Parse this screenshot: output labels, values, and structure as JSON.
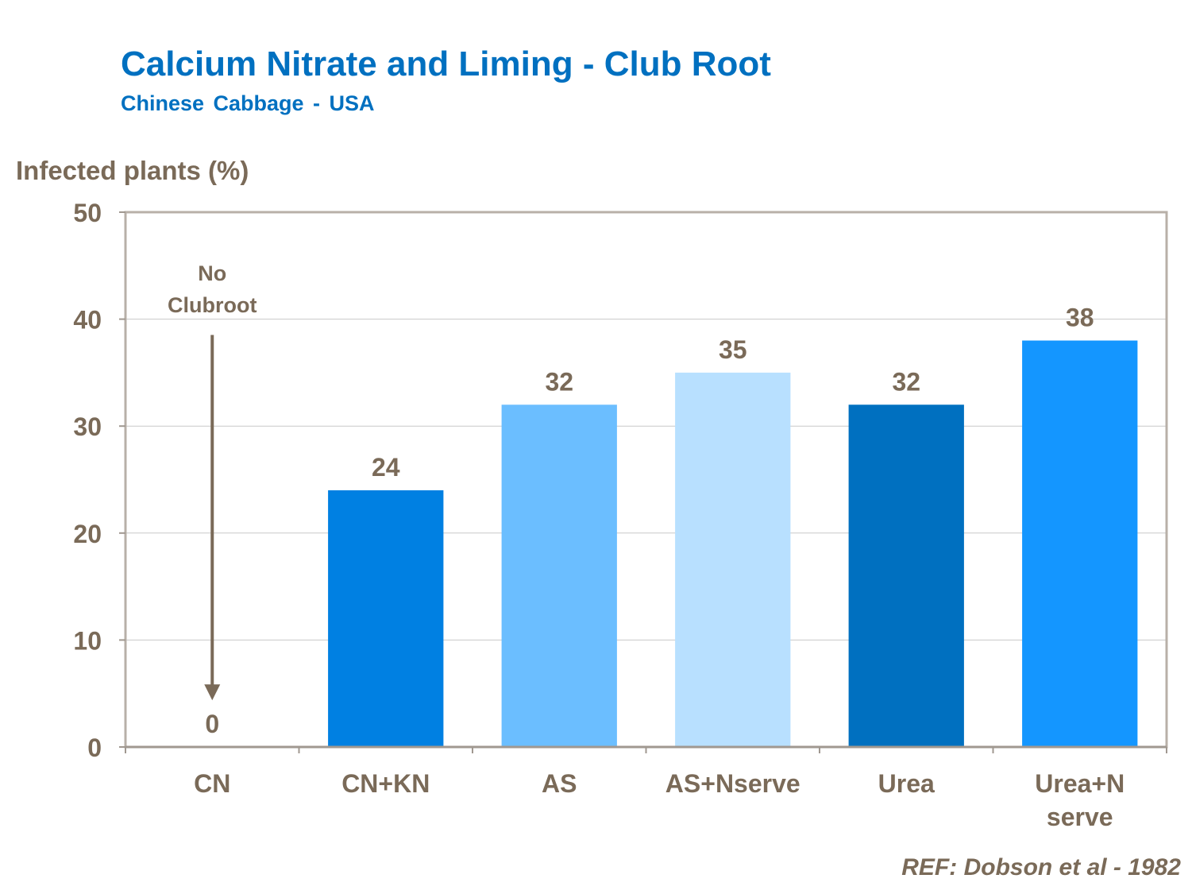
{
  "chart_data": {
    "type": "bar",
    "title": "Calcium Nitrate and Liming - Club Root",
    "subtitle": "Chinese Cabbage - USA",
    "ylabel": "Infected plants (%)",
    "xlabel": "",
    "ylim": [
      0,
      50
    ],
    "yticks": [
      0,
      10,
      20,
      30,
      40,
      50
    ],
    "grid": true,
    "categories": [
      [
        "CN"
      ],
      [
        "CN+KN"
      ],
      [
        "AS"
      ],
      [
        "AS+Nserve"
      ],
      [
        "Urea"
      ],
      [
        "Urea+N",
        "serve"
      ]
    ],
    "values": [
      0,
      24,
      32,
      35,
      32,
      38
    ],
    "value_labels": [
      "0",
      "24",
      "32",
      "35",
      "32",
      "38"
    ],
    "bar_colors": [
      "#0070C0",
      "#0080E2",
      "#6BBEFF",
      "#B8E0FF",
      "#0070C0",
      "#1496FF"
    ],
    "annotation": {
      "text_lines": [
        "No",
        "Clubroot"
      ],
      "category_index": 0,
      "arrow_top_value": 38,
      "arrow_tip_value": 6
    },
    "reference": "REF: Dobson et al - 1982"
  },
  "colors": {
    "title": "#0070C0",
    "text": "#7A6A58",
    "frame": "#B8B0A8",
    "axis": "#A09890",
    "grid": "#C8C8C8",
    "arrow": "#7A6A58"
  }
}
